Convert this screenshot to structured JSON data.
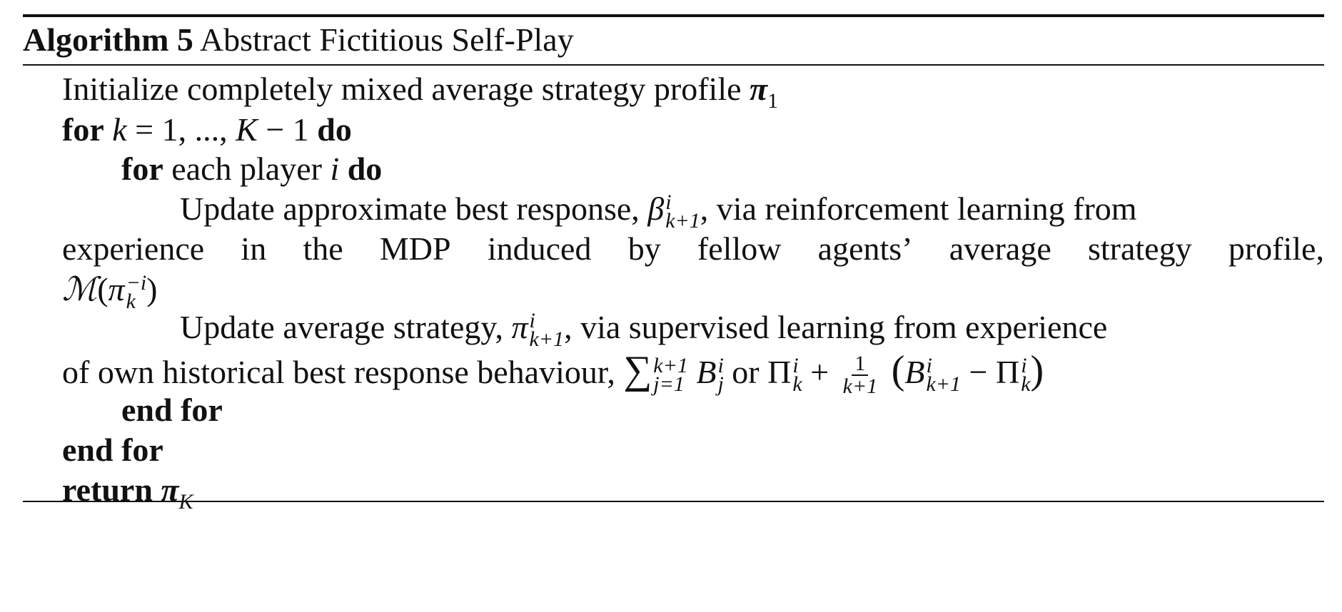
{
  "algorithm": {
    "label": "Algorithm 5",
    "title": "Abstract Fictitious Self-Play"
  },
  "lines": {
    "init_text": "Initialize completely mixed average strategy profile",
    "init_symbol": "π",
    "init_symbol_sub": "1",
    "for_kw": "for",
    "do_kw": "do",
    "outer_loop_var": "k",
    "outer_loop_range": " = 1, ..., ",
    "outer_loop_end": "K",
    "outer_loop_minus": " − 1",
    "inner_loop_text": "each player",
    "inner_loop_var": "i",
    "br_text_1": "Update approximate best response,",
    "br_symbol": "β",
    "br_sup": "i",
    "br_sub": "k+1",
    "br_text_2": ", via reinforcement learning from",
    "br_cont_words": [
      "experience",
      "in",
      "the",
      "MDP",
      "induced",
      "by",
      "fellow",
      "agents’",
      "average",
      "strategy",
      "profile,"
    ],
    "mdp_symbol": "ℳ",
    "mdp_pi": "π",
    "mdp_sup": "−i",
    "mdp_sub": "k",
    "avg_text_1": "Update average strategy,",
    "avg_symbol": "π",
    "avg_sup": "i",
    "avg_sub": "k+1",
    "avg_text_2": ", via supervised learning from experience",
    "avg_cont_text": "of own historical best response behaviour,",
    "sum_symbol": "∑",
    "sum_upper": "k+1",
    "sum_lower": "j=1",
    "B": "B",
    "B_sup": "i",
    "B_sub": "j",
    "or_text": "or",
    "Pi": "Π",
    "Pi_sup": "i",
    "Pi_sub": "k",
    "plus": "+",
    "frac_num": "1",
    "frac_den": "k+1",
    "B2_sub": "k+1",
    "minus": "−",
    "end_for": "end for",
    "return_kw": "return",
    "return_symbol": "π",
    "return_sub": "K"
  }
}
